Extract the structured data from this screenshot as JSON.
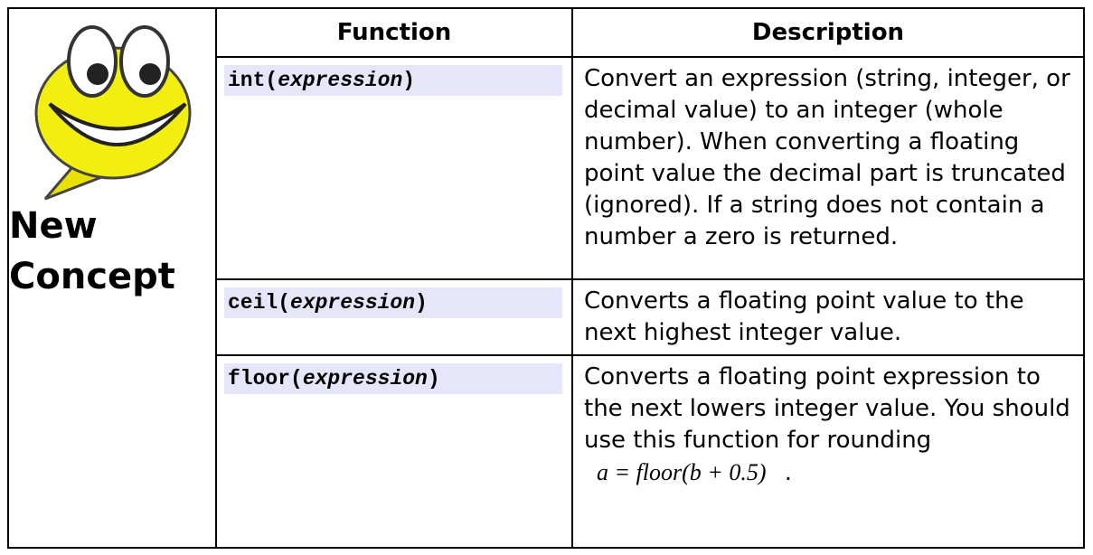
{
  "sidebar": {
    "line1": "New",
    "line2": "Concept"
  },
  "table": {
    "header": [
      "Function",
      "Description"
    ],
    "rows": [
      {
        "function": [
          "int(",
          "expression",
          ")"
        ],
        "description": "Convert an expression (string, integer, or decimal value) to an integer (whole number).  When converting a floating point value the decimal part is truncated (ignored).  If a string does not contain a number a zero is returned."
      },
      {
        "function": [
          "ceil(",
          "expression",
          ")"
        ],
        "description": "Converts a floating point value to the next highest integer value."
      },
      {
        "function": [
          "floor(",
          "expression",
          ")"
        ],
        "description": "Converts a floating point expression to the next lowers integer value.  You should use this function for rounding",
        "formula": "a = floor(b + 0.5)",
        "formula_end": "."
      }
    ]
  }
}
